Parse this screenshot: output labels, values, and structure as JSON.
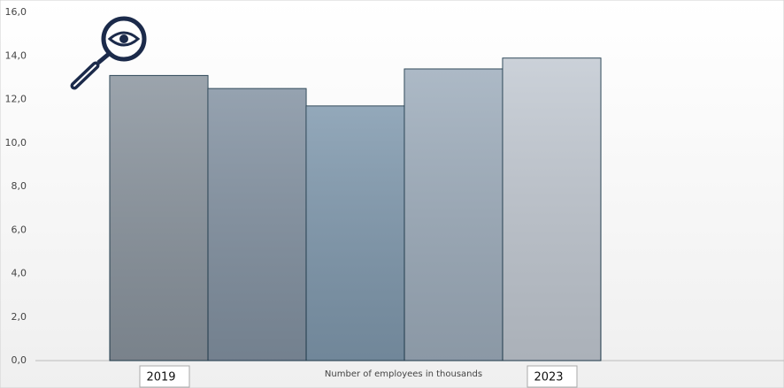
{
  "chart_data": {
    "type": "bar",
    "x_label": "Number of employees in thousands",
    "categories": [
      "2019",
      null,
      null,
      null,
      "2023"
    ],
    "values": [
      13.1,
      12.5,
      11.7,
      13.4,
      13.9
    ],
    "colors": [
      "#8a949e",
      "#8392a2",
      "#8099ae",
      "#9eadbc",
      "#c2c9d2"
    ],
    "ylim": [
      0,
      16
    ],
    "yticks": [
      {
        "value": 0,
        "label": "0,0"
      },
      {
        "value": 2,
        "label": "2,0"
      },
      {
        "value": 4,
        "label": "4,0"
      },
      {
        "value": 6,
        "label": "6,0"
      },
      {
        "value": 8,
        "label": "8,0"
      },
      {
        "value": 10,
        "label": "10,0"
      },
      {
        "value": 12,
        "label": "12,0"
      },
      {
        "value": 14,
        "label": "14,0"
      },
      {
        "value": 16,
        "label": "16,0"
      }
    ]
  }
}
